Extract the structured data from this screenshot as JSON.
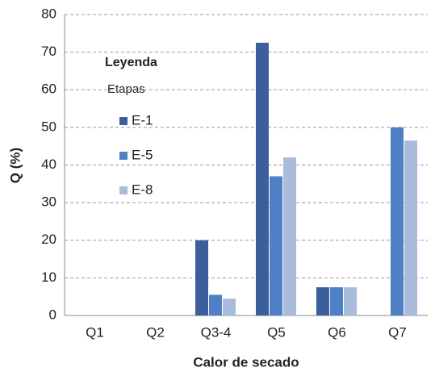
{
  "chart_data": {
    "type": "bar",
    "x_label": "Calor de secado",
    "y_label": "Q (%)",
    "legend_title": "Leyenda",
    "legend_subtitle": "Etapas",
    "categories": [
      "Q1",
      "Q2",
      "Q3-4",
      "Q5",
      "Q6",
      "Q7"
    ],
    "series": [
      {
        "name": "E-1",
        "color": "#3a5f9b",
        "values": [
          0,
          0,
          20,
          72.5,
          7.5,
          0
        ]
      },
      {
        "name": "E-5",
        "color": "#4f7fc4",
        "values": [
          0,
          0,
          5.5,
          37,
          7.5,
          50
        ]
      },
      {
        "name": "E-8",
        "color": "#aabcdc",
        "values": [
          0,
          0,
          4.5,
          42,
          7.5,
          46.5
        ]
      }
    ],
    "ylim": [
      0,
      80
    ],
    "yticks": [
      0,
      10,
      20,
      30,
      40,
      50,
      60,
      70,
      80
    ],
    "grid": true
  }
}
